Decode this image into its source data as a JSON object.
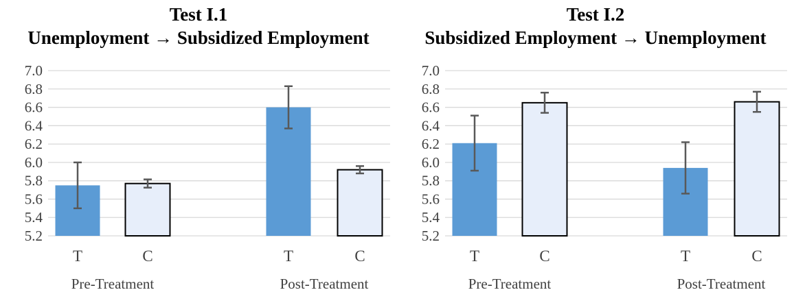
{
  "chart_data": [
    {
      "type": "bar",
      "title": "Test I.1",
      "subtitle": "Unemployment → Subsidized Employment",
      "groups": [
        "Pre-Treatment",
        "Post-Treatment"
      ],
      "categories": [
        "T",
        "C"
      ],
      "series": [
        {
          "values": [
            5.75,
            5.77
          ],
          "errors": [
            0.25,
            0.045
          ]
        },
        {
          "values": [
            6.6,
            5.92
          ],
          "errors": [
            0.23,
            0.04
          ]
        }
      ],
      "ylim": [
        5.2,
        7.0
      ],
      "yticks": [
        "5.2",
        "5.4",
        "5.6",
        "5.8",
        "6.0",
        "6.2",
        "6.4",
        "6.6",
        "6.8",
        "7.0"
      ],
      "grid": true,
      "colors": {
        "T": "#5b9bd5",
        "C": "#e7eefa",
        "C_border": "#000000"
      }
    },
    {
      "type": "bar",
      "title": "Test I.2",
      "subtitle": "Subsidized Employment → Unemployment",
      "groups": [
        "Pre-Treatment",
        "Post-Treatment"
      ],
      "categories": [
        "T",
        "C"
      ],
      "series": [
        {
          "values": [
            6.21,
            6.65
          ],
          "errors": [
            0.3,
            0.11
          ]
        },
        {
          "values": [
            5.94,
            6.66
          ],
          "errors": [
            0.28,
            0.11
          ]
        }
      ],
      "ylim": [
        5.2,
        7.0
      ],
      "yticks": [
        "5.2",
        "5.4",
        "5.6",
        "5.8",
        "6.0",
        "6.2",
        "6.4",
        "6.6",
        "6.8",
        "7.0"
      ],
      "grid": true,
      "colors": {
        "T": "#5b9bd5",
        "C": "#e7eefa",
        "C_border": "#000000"
      }
    }
  ]
}
